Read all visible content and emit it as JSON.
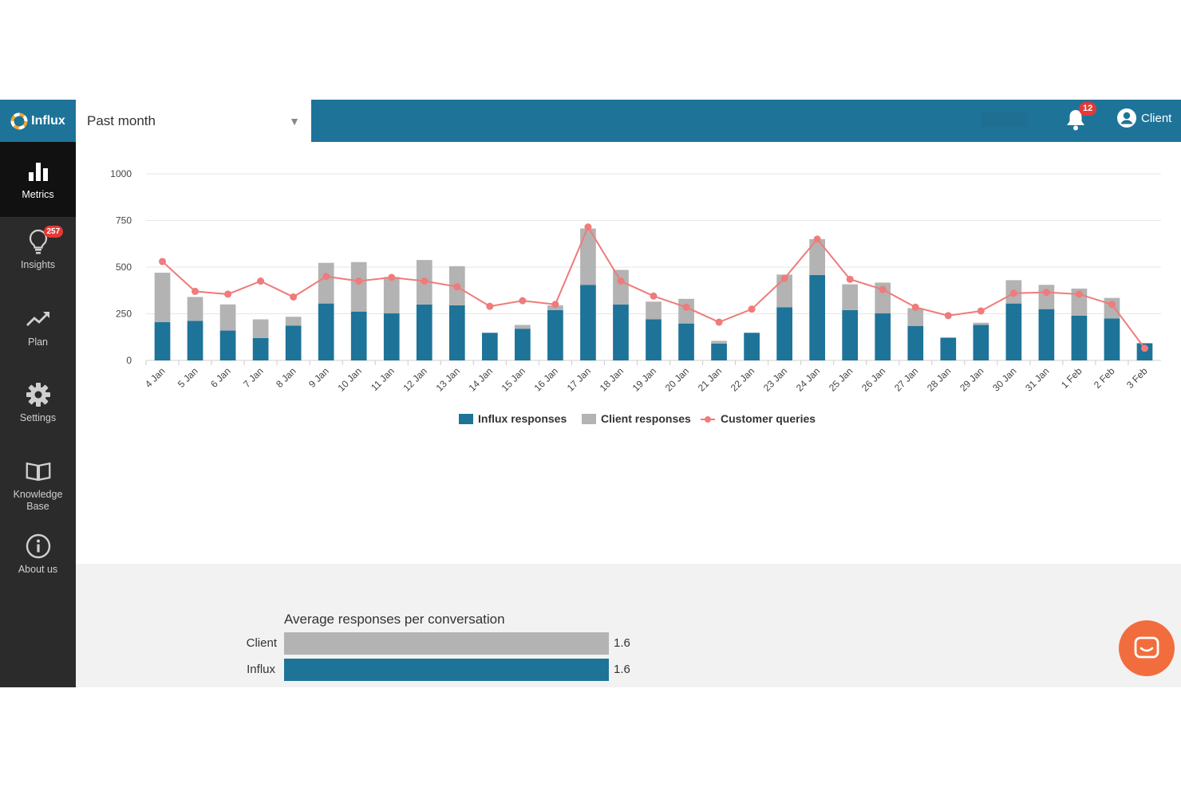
{
  "app": {
    "logo_text": "Influx"
  },
  "sidebar": {
    "items": [
      {
        "label": "Metrics",
        "icon": "bar-chart-icon",
        "active": true
      },
      {
        "label": "Insights",
        "icon": "lightbulb-icon",
        "badge": "257"
      },
      {
        "label": "Plan",
        "icon": "trend-up-icon"
      },
      {
        "label": "Settings",
        "icon": "gear-icon"
      },
      {
        "label": "Knowledge\nBase",
        "icon": "book-icon"
      },
      {
        "label": "About us",
        "icon": "info-icon"
      }
    ]
  },
  "header": {
    "period": "Past month",
    "notifications_count": "12",
    "user_label": "Client"
  },
  "colors": {
    "influx": "#1e7399",
    "client": "#b3b3b3",
    "queries": "#ef7b7b",
    "accent": "#1e7399",
    "chat": "#f26d3d"
  },
  "chart_data": {
    "type": "bar",
    "stacked": true,
    "categories": [
      "4 Jan",
      "5 Jan",
      "6 Jan",
      "7 Jan",
      "8 Jan",
      "9 Jan",
      "10 Jan",
      "11 Jan",
      "12 Jan",
      "13 Jan",
      "14 Jan",
      "15 Jan",
      "16 Jan",
      "17 Jan",
      "18 Jan",
      "19 Jan",
      "20 Jan",
      "21 Jan",
      "22 Jan",
      "23 Jan",
      "24 Jan",
      "25 Jan",
      "26 Jan",
      "27 Jan",
      "28 Jan",
      "29 Jan",
      "30 Jan",
      "31 Jan",
      "1 Feb",
      "2 Feb",
      "3 Feb"
    ],
    "series": [
      {
        "name": "Influx responses",
        "kind": "bar",
        "values": [
          205,
          212,
          160,
          120,
          186,
          305,
          262,
          252,
          300,
          295,
          148,
          170,
          270,
          405,
          300,
          220,
          198,
          90,
          148,
          285,
          458,
          270,
          252,
          185,
          122,
          190,
          305,
          275,
          240,
          225,
          92
        ]
      },
      {
        "name": "Client responses",
        "kind": "bar",
        "values": [
          265,
          128,
          140,
          100,
          48,
          218,
          265,
          195,
          238,
          210,
          0,
          20,
          25,
          302,
          185,
          95,
          132,
          15,
          0,
          175,
          192,
          138,
          165,
          95,
          0,
          12,
          125,
          130,
          145,
          110,
          0
        ]
      },
      {
        "name": "Customer queries",
        "kind": "line",
        "values": [
          530,
          370,
          355,
          425,
          340,
          450,
          425,
          445,
          425,
          395,
          290,
          320,
          300,
          715,
          425,
          345,
          285,
          205,
          275,
          440,
          650,
          435,
          380,
          285,
          240,
          265,
          360,
          365,
          355,
          300,
          65
        ]
      }
    ],
    "yticks": [
      "0",
      "250",
      "500",
      "750",
      "1000"
    ],
    "ylim": [
      0,
      1000
    ],
    "grid": true,
    "legend": "bottom-center"
  },
  "averages": {
    "title": "Average responses per conversation",
    "rows": [
      {
        "label": "Client",
        "value": 1.6,
        "value_text": "1.6"
      },
      {
        "label": "Influx",
        "value": 1.6,
        "value_text": "1.6"
      }
    ]
  }
}
